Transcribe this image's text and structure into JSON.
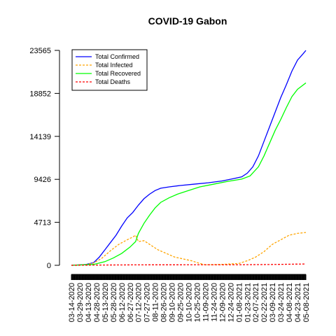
{
  "chart_data": {
    "type": "line",
    "title": "COVID-19 Gabon",
    "xlabel": "",
    "ylabel": "",
    "x_range": [
      "2020-03-14",
      "2021-05-08"
    ],
    "ylim": [
      0,
      23565
    ],
    "y_ticks": [
      "0",
      "4713",
      "9426",
      "14139",
      "18852",
      "23565"
    ],
    "y_tick_values": [
      0,
      4713,
      9426,
      14139,
      18852,
      23565
    ],
    "x_tick_labels": [
      "03-14-2020",
      "03-29-2020",
      "04-13-2020",
      "04-28-2020",
      "05-13-2020",
      "05-28-2020",
      "06-12-2020",
      "06-27-2020",
      "07-12-2020",
      "07-27-2020",
      "08-11-2020",
      "08-26-2020",
      "09-10-2020",
      "09-25-2020",
      "10-10-2020",
      "10-25-2020",
      "11-09-2020",
      "11-24-2020",
      "12-09-2020",
      "12-24-2020",
      "01-08-2021",
      "01-23-2021",
      "02-07-2021",
      "02-22-2021",
      "03-09-2021",
      "03-24-2021",
      "04-08-2021",
      "04-23-2021",
      "05-08-2021"
    ],
    "grid": false,
    "legend_position": "top-left",
    "series": [
      {
        "name": "Total Confirmed",
        "color": "#0000ff",
        "dash": "solid",
        "points": [
          [
            "2020-03-14",
            0
          ],
          [
            "2020-04-08",
            80
          ],
          [
            "2020-04-23",
            300
          ],
          [
            "2020-05-03",
            900
          ],
          [
            "2020-05-13",
            1700
          ],
          [
            "2020-05-23",
            2500
          ],
          [
            "2020-06-02",
            3300
          ],
          [
            "2020-06-12",
            4300
          ],
          [
            "2020-06-22",
            5200
          ],
          [
            "2020-07-02",
            5800
          ],
          [
            "2020-07-12",
            6600
          ],
          [
            "2020-07-22",
            7300
          ],
          [
            "2020-08-01",
            7800
          ],
          [
            "2020-08-11",
            8200
          ],
          [
            "2020-08-21",
            8450
          ],
          [
            "2020-09-05",
            8600
          ],
          [
            "2020-09-25",
            8750
          ],
          [
            "2020-10-20",
            8900
          ],
          [
            "2020-11-14",
            9050
          ],
          [
            "2020-12-09",
            9250
          ],
          [
            "2020-12-29",
            9500
          ],
          [
            "2021-01-13",
            9700
          ],
          [
            "2021-01-23",
            10100
          ],
          [
            "2021-02-02",
            10800
          ],
          [
            "2021-02-12",
            12000
          ],
          [
            "2021-02-22",
            13600
          ],
          [
            "2021-03-04",
            15200
          ],
          [
            "2021-03-14",
            16800
          ],
          [
            "2021-03-24",
            18400
          ],
          [
            "2021-04-03",
            19800
          ],
          [
            "2021-04-13",
            21300
          ],
          [
            "2021-04-23",
            22500
          ],
          [
            "2021-05-03",
            23200
          ],
          [
            "2021-05-08",
            23565
          ]
        ]
      },
      {
        "name": "Total Infected",
        "color": "#ffa500",
        "dash": "dashed",
        "points": [
          [
            "2020-03-14",
            0
          ],
          [
            "2020-04-08",
            70
          ],
          [
            "2020-04-23",
            250
          ],
          [
            "2020-05-08",
            800
          ],
          [
            "2020-05-23",
            1600
          ],
          [
            "2020-06-07",
            2300
          ],
          [
            "2020-06-22",
            2800
          ],
          [
            "2020-07-02",
            3100
          ],
          [
            "2020-07-07",
            3300
          ],
          [
            "2020-07-12",
            2600
          ],
          [
            "2020-07-22",
            2700
          ],
          [
            "2020-08-01",
            2300
          ],
          [
            "2020-08-16",
            1700
          ],
          [
            "2020-08-31",
            1300
          ],
          [
            "2020-09-15",
            900
          ],
          [
            "2020-09-30",
            700
          ],
          [
            "2020-10-15",
            500
          ],
          [
            "2020-10-30",
            200
          ],
          [
            "2020-11-09",
            50
          ],
          [
            "2020-12-09",
            100
          ],
          [
            "2021-01-08",
            200
          ],
          [
            "2021-01-23",
            500
          ],
          [
            "2021-02-07",
            900
          ],
          [
            "2021-02-22",
            1500
          ],
          [
            "2021-03-09",
            2300
          ],
          [
            "2021-03-24",
            2800
          ],
          [
            "2021-04-08",
            3300
          ],
          [
            "2021-04-23",
            3500
          ],
          [
            "2021-05-08",
            3600
          ]
        ]
      },
      {
        "name": "Total Recovered",
        "color": "#00ff00",
        "dash": "solid",
        "points": [
          [
            "2020-03-14",
            0
          ],
          [
            "2020-04-23",
            100
          ],
          [
            "2020-05-13",
            400
          ],
          [
            "2020-05-28",
            800
          ],
          [
            "2020-06-12",
            1300
          ],
          [
            "2020-06-27",
            2000
          ],
          [
            "2020-07-07",
            2600
          ],
          [
            "2020-07-12",
            3500
          ],
          [
            "2020-07-22",
            4600
          ],
          [
            "2020-08-01",
            5500
          ],
          [
            "2020-08-11",
            6300
          ],
          [
            "2020-08-21",
            6900
          ],
          [
            "2020-09-05",
            7400
          ],
          [
            "2020-09-20",
            7800
          ],
          [
            "2020-10-10",
            8200
          ],
          [
            "2020-10-30",
            8600
          ],
          [
            "2020-11-24",
            8900
          ],
          [
            "2020-12-19",
            9200
          ],
          [
            "2021-01-13",
            9450
          ],
          [
            "2021-01-28",
            9800
          ],
          [
            "2021-02-12",
            10800
          ],
          [
            "2021-02-22",
            12000
          ],
          [
            "2021-03-04",
            13400
          ],
          [
            "2021-03-14",
            14800
          ],
          [
            "2021-03-24",
            16000
          ],
          [
            "2021-04-03",
            17300
          ],
          [
            "2021-04-13",
            18500
          ],
          [
            "2021-04-23",
            19300
          ],
          [
            "2021-05-08",
            20000
          ]
        ]
      },
      {
        "name": "Total Deaths",
        "color": "#ff0000",
        "dash": "dashed",
        "points": [
          [
            "2020-03-14",
            0
          ],
          [
            "2020-05-13",
            30
          ],
          [
            "2020-07-12",
            50
          ],
          [
            "2020-10-10",
            55
          ],
          [
            "2021-01-08",
            60
          ],
          [
            "2021-03-09",
            90
          ],
          [
            "2021-05-08",
            145
          ]
        ]
      }
    ]
  }
}
